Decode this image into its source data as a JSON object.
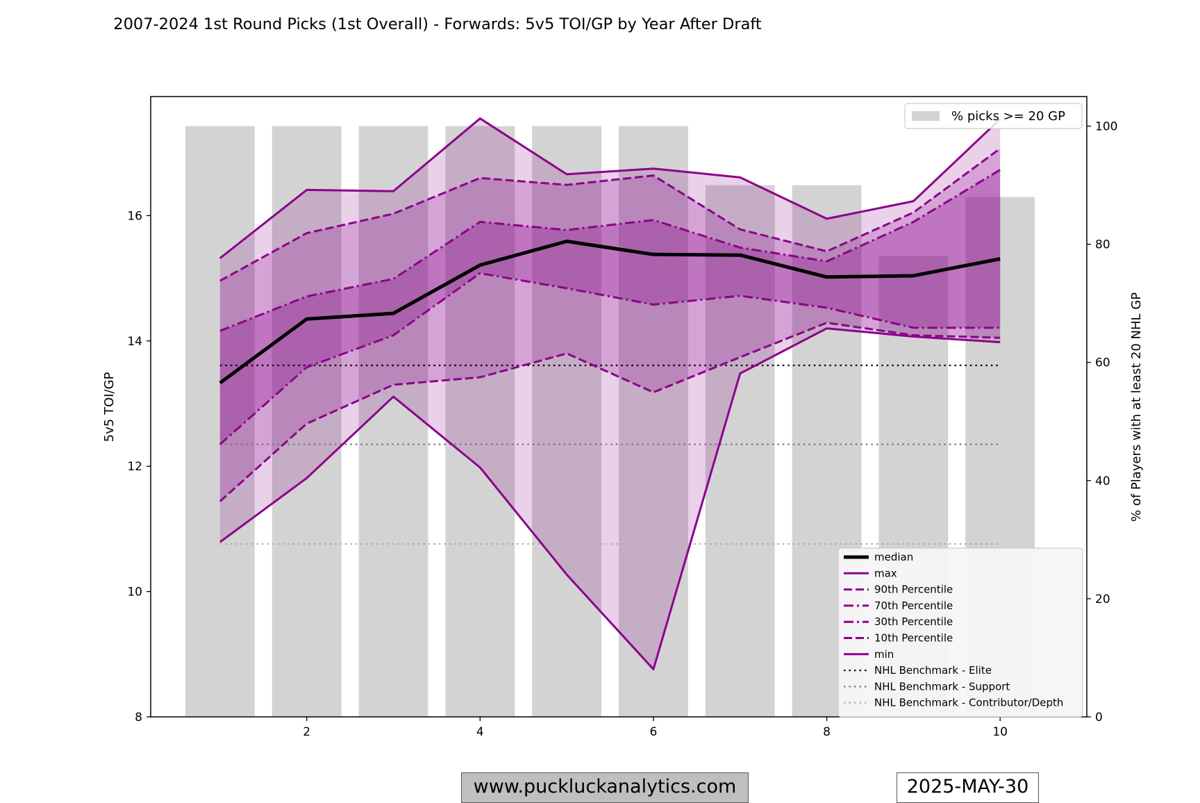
{
  "chart_data": {
    "type": "line",
    "title": "2007-2024 1st Round Picks (1st Overall) - Forwards: 5v5 TOI/GP by Year After Draft",
    "ylabel": "5v5 TOI/GP",
    "y2label": "% of Players with at least 20 NHL GP",
    "x": [
      1,
      2,
      3,
      4,
      5,
      6,
      7,
      8,
      9,
      10
    ],
    "xticks": [
      2,
      4,
      6,
      8,
      10
    ],
    "xlim": [
      0.2,
      11.0
    ],
    "yticks": [
      8,
      10,
      12,
      14,
      16
    ],
    "ylim": [
      8,
      17.9
    ],
    "y2ticks": [
      0,
      20,
      40,
      60,
      80,
      100
    ],
    "y2lim": [
      0,
      105
    ],
    "series": [
      {
        "name": "median",
        "values": [
          13.33,
          14.35,
          14.44,
          15.21,
          15.59,
          15.38,
          15.37,
          15.02,
          15.04,
          15.31
        ],
        "color": "#000000",
        "style": "solid",
        "width": 5
      },
      {
        "name": "max",
        "values": [
          15.32,
          16.41,
          16.39,
          17.55,
          16.66,
          16.75,
          16.61,
          15.95,
          16.23,
          17.54
        ],
        "color": "#8b008b",
        "style": "solid",
        "width": 3
      },
      {
        "name": "90th Percentile",
        "values": [
          14.96,
          15.72,
          16.03,
          16.6,
          16.49,
          16.64,
          15.78,
          15.43,
          16.05,
          17.07
        ],
        "color": "#8b008b",
        "style": "dashed",
        "width": 3
      },
      {
        "name": "70th Percentile",
        "values": [
          14.16,
          14.71,
          14.99,
          15.9,
          15.77,
          15.93,
          15.49,
          15.27,
          15.9,
          16.73
        ],
        "color": "#8b008b",
        "style": "dashdot",
        "width": 3
      },
      {
        "name": "30th Percentile",
        "values": [
          12.35,
          13.58,
          14.09,
          15.08,
          14.84,
          14.58,
          14.72,
          14.53,
          14.21,
          14.21
        ],
        "color": "#8b008b",
        "style": "dashdot",
        "width": 3
      },
      {
        "name": "10th Percentile",
        "values": [
          11.44,
          12.68,
          13.3,
          13.42,
          13.8,
          13.18,
          13.74,
          14.29,
          14.09,
          14.05
        ],
        "color": "#8b008b",
        "style": "dashed",
        "width": 3
      },
      {
        "name": "min",
        "values": [
          10.79,
          11.81,
          13.11,
          11.98,
          10.27,
          8.76,
          13.48,
          14.2,
          14.07,
          13.98
        ],
        "color": "#8b008b",
        "style": "solid",
        "width": 3
      }
    ],
    "benchmarks": [
      {
        "name": "NHL Benchmark - Elite",
        "value": 13.61,
        "color": "#000000"
      },
      {
        "name": "NHL Benchmark - Support",
        "value": 12.35,
        "color": "#777777"
      },
      {
        "name": "NHL Benchmark - Contributor/Depth",
        "value": 10.76,
        "color": "#aaaaaa"
      }
    ],
    "bars": {
      "name": "% picks >= 20 GP",
      "values": [
        100,
        100,
        100,
        100,
        100,
        100,
        90,
        90,
        78,
        88
      ],
      "color": "#d3d3d3"
    },
    "bands": [
      {
        "lower": "min",
        "upper": "max",
        "color": "#8b008b",
        "opacity": 0.18
      },
      {
        "lower": "10th Percentile",
        "upper": "90th Percentile",
        "color": "#8b008b",
        "opacity": 0.22
      },
      {
        "lower": "30th Percentile",
        "upper": "70th Percentile",
        "color": "#8b008b",
        "opacity": 0.28
      }
    ],
    "legend_bars_position": "top-right",
    "legend_lines_position": "bottom-right",
    "grid": false
  },
  "footer": {
    "website": "www.puckluckanalytics.com",
    "date": "2025-MAY-30"
  }
}
